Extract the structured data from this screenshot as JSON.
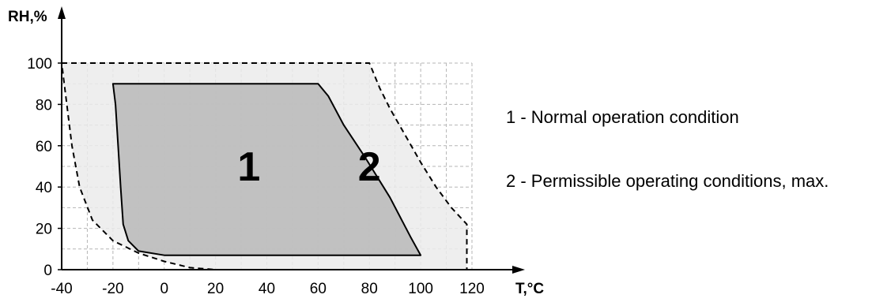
{
  "chart_data": {
    "type": "area",
    "xlabel": "T,°C",
    "ylabel": "RH,%",
    "xlim": [
      -40,
      125
    ],
    "ylim": [
      0,
      100
    ],
    "x_ticks": [
      -40,
      -20,
      0,
      20,
      40,
      60,
      80,
      100,
      120
    ],
    "y_ticks": [
      0,
      20,
      40,
      60,
      80,
      100
    ],
    "x_tick_labels": [
      "-40",
      "-20",
      "0",
      "20",
      "40",
      "60",
      "80",
      "100",
      "120"
    ],
    "y_tick_labels": [
      "0",
      "20",
      "40",
      "60",
      "80",
      "100"
    ],
    "grid": true,
    "regions": [
      {
        "label": "1",
        "label_position": [
          33,
          50
        ],
        "fill": "#b8b8b8",
        "border": "solid",
        "boundary": [
          [
            -20,
            90
          ],
          [
            60,
            90
          ],
          [
            64,
            84
          ],
          [
            70,
            70
          ],
          [
            78,
            55
          ],
          [
            88,
            35
          ],
          [
            96,
            16
          ],
          [
            100,
            7
          ],
          [
            30,
            7
          ],
          [
            0,
            7
          ],
          [
            -10,
            9
          ],
          [
            -14,
            14
          ],
          [
            -16,
            22
          ],
          [
            -17,
            40
          ],
          [
            -18,
            60
          ],
          [
            -19,
            80
          ],
          [
            -20,
            90
          ]
        ]
      },
      {
        "label": "2",
        "label_position": [
          80,
          50
        ],
        "fill": "#ebebeb",
        "border": "dashed",
        "boundary": [
          [
            -40,
            100
          ],
          [
            80,
            100
          ],
          [
            84,
            88
          ],
          [
            88,
            78
          ],
          [
            94,
            65
          ],
          [
            100,
            52
          ],
          [
            106,
            40
          ],
          [
            112,
            30
          ],
          [
            118,
            22
          ],
          [
            118,
            0
          ],
          [
            20,
            0
          ],
          [
            10,
            1
          ],
          [
            0,
            4
          ],
          [
            -10,
            8
          ],
          [
            -20,
            14
          ],
          [
            -28,
            24
          ],
          [
            -33,
            40
          ],
          [
            -36,
            60
          ],
          [
            -38,
            80
          ],
          [
            -40,
            100
          ]
        ]
      }
    ],
    "legend": [
      "1 - Normal operation condition",
      "2 - Permissible operating conditions, max."
    ]
  }
}
